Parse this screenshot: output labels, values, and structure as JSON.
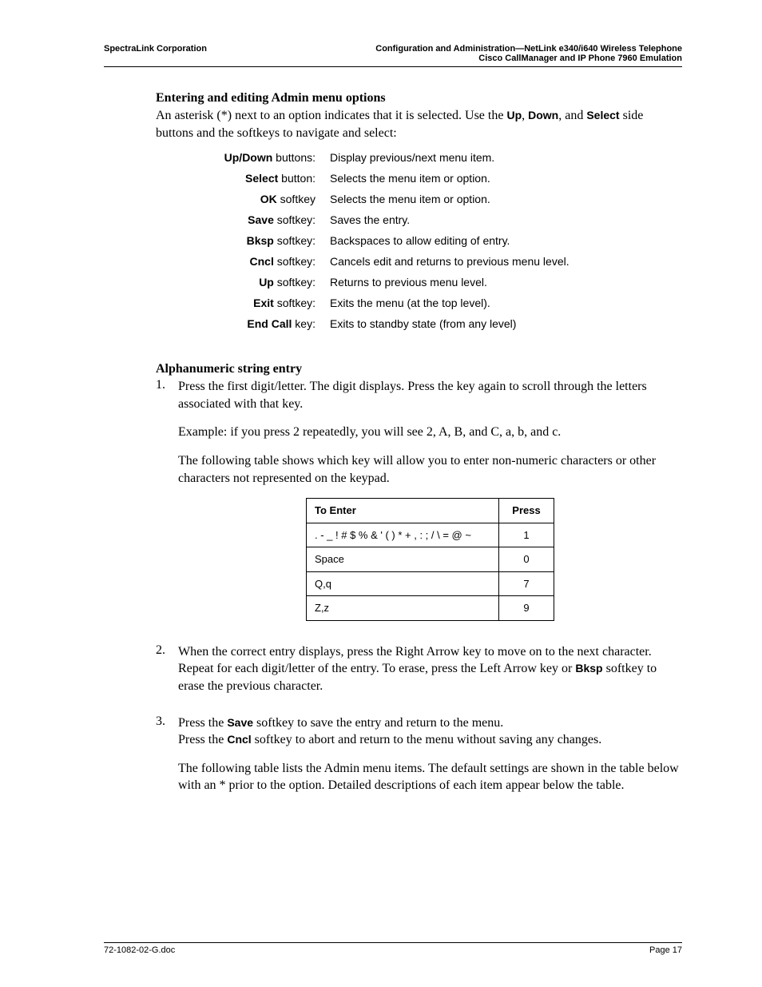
{
  "header": {
    "left": "SpectraLink Corporation",
    "right1": "Configuration and Administration—NetLink e340/i640 Wireless Telephone",
    "right2": "Cisco CallManager and IP Phone 7960 Emulation"
  },
  "section1": {
    "heading": "Entering and editing Admin menu options",
    "intro_a": "An asterisk (*) next to an option indicates that it is selected. Use the ",
    "intro_up": "Up",
    "intro_sep1": ", ",
    "intro_down": "Down",
    "intro_sep2": ", and ",
    "intro_select": "Select",
    "intro_b": " side buttons and the softkeys to navigate and select:"
  },
  "keys": [
    {
      "bold": "Up/Down",
      "suffix": " buttons:",
      "desc": "Display previous/next menu item."
    },
    {
      "bold": "Select",
      "suffix": " button:",
      "desc": "Selects the menu item or option."
    },
    {
      "bold": "OK",
      "suffix": " softkey",
      "desc": "Selects the menu item or option."
    },
    {
      "bold": "Save",
      "suffix": " softkey:",
      "desc": "Saves the entry."
    },
    {
      "bold": "Bksp",
      "suffix": " softkey:",
      "desc": "Backspaces to allow editing of entry."
    },
    {
      "bold": "Cncl",
      "suffix": " softkey:",
      "desc": "Cancels edit and returns to previous menu level."
    },
    {
      "bold": "Up",
      "suffix": " softkey:",
      "desc": "Returns to previous menu level."
    },
    {
      "bold": "Exit",
      "suffix": " softkey:",
      "desc": "Exits the menu (at the top level)."
    },
    {
      "bold": "End Call",
      "suffix": " key:",
      "desc": "Exits to standby state (from any level)"
    }
  ],
  "section2": {
    "heading": "Alphanumeric string entry"
  },
  "steps": {
    "s1": {
      "num": "1.",
      "p1": "Press the first digit/letter. The digit displays. Press the key again to scroll through the letters associated with that key.",
      "p2": "Example: if you press 2 repeatedly, you will see 2, A, B, and C, a, b, and c.",
      "p3": "The following table shows which key will allow you to enter non-numeric characters or other characters not represented on the keypad."
    },
    "s2": {
      "num": "2.",
      "p1a": "When the correct entry displays, press the Right Arrow key to move on to the next character. Repeat for each digit/letter of the entry. To erase, press the Left Arrow key or ",
      "bksp": "Bksp",
      "p1b": " softkey to erase the previous character."
    },
    "s3": {
      "num": "3.",
      "p1a": "Press the ",
      "save": "Save",
      "p1b": " softkey to save the entry and return to the menu.",
      "p2a": "Press the ",
      "cncl": "Cncl",
      "p2b": " softkey to abort and return to the menu without saving any changes.",
      "p3": "The following table lists the Admin menu items. The default settings are shown in the table below with an * prior to the option. Detailed descriptions of each item appear below the table."
    }
  },
  "charTable": {
    "h1": "To Enter",
    "h2": "Press",
    "rows": [
      {
        "enter": ". - _ ! # $ % & ' ( ) * + , : ; / \\ = @ ~",
        "press": "1"
      },
      {
        "enter": "Space",
        "press": "0"
      },
      {
        "enter": "Q,q",
        "press": "7"
      },
      {
        "enter": "Z,z",
        "press": "9"
      }
    ]
  },
  "footer": {
    "left": "72-1082-02-G.doc",
    "right": "Page 17"
  }
}
